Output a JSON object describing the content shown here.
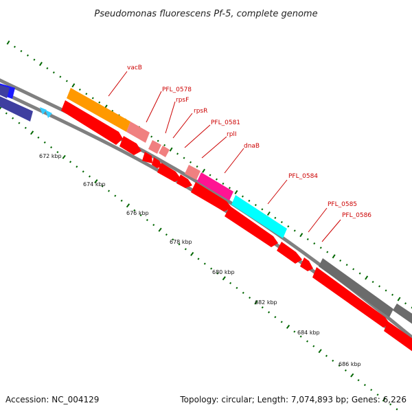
{
  "title": "Pseudomonas fluorescens Pf-5, complete genome",
  "accession": "Accession: NC_004129",
  "summary": "Topology: circular; Length: 7,074,893 bp; Genes: 6,226",
  "scale": {
    "ticks": [
      "672 kbp",
      "674 kbp",
      "676 kbp",
      "678 kbp",
      "680 kbp",
      "682 kbp",
      "684 kbp",
      "686 kbp"
    ]
  },
  "gene_labels": [
    "vacB",
    "PFL_0578",
    "rpsF",
    "rpsR",
    "PFL_0581",
    "rplI",
    "dnaB",
    "PFL_0584",
    "PFL_0585",
    "PFL_0586"
  ],
  "colors": {
    "backbone": "#808080",
    "cds_forward": "#ff0000",
    "dark_blue": "#3f3fa0",
    "blue": "#1a1aff",
    "cyan_small": "#33ccff",
    "vacB": "#ff9900",
    "pink": "#f08080",
    "magenta": "#ff1493",
    "cyan": "#00ffff",
    "gray_block": "#6b6b6b",
    "tick_green": "#006600",
    "label_red": "#cc0000"
  }
}
